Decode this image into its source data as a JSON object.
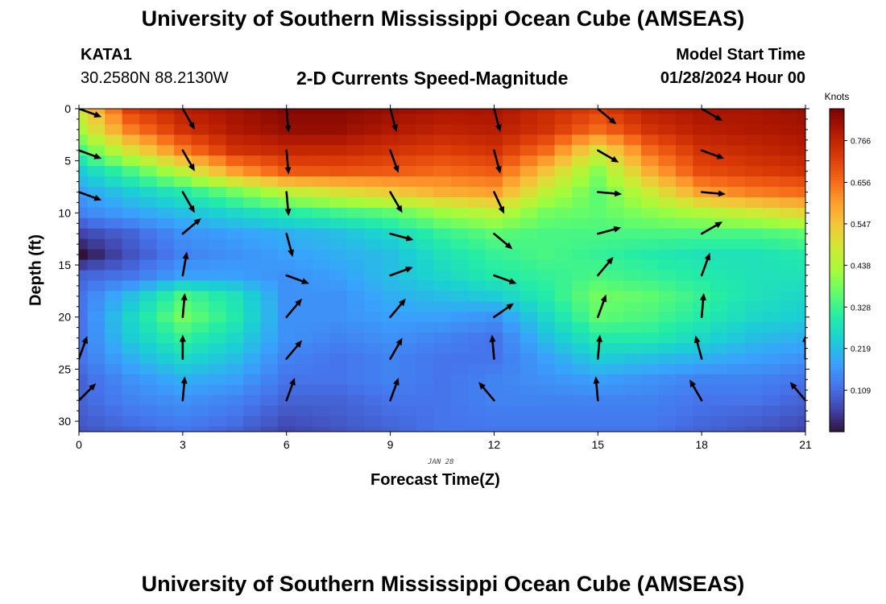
{
  "title": "University of Southern Mississippi Ocean Cube (AMSEAS)",
  "footer_title": "University of Southern Mississippi Ocean Cube (AMSEAS)",
  "station": {
    "id": "KATA1",
    "coords": "30.2580N  88.2130W"
  },
  "subtitle": "2-D Currents Speed-Magnitude",
  "model_start": {
    "label": "Model Start Time",
    "value": "01/28/2024 Hour 00"
  },
  "chart_data": {
    "type": "heatmap",
    "xlabel": "Forecast Time(Z)",
    "ylabel": "Depth (ft)",
    "date_label": "JAN 28",
    "x_ticks": [
      0,
      3,
      6,
      9,
      12,
      15,
      18,
      21
    ],
    "y_ticks": [
      0,
      5,
      10,
      15,
      20,
      25,
      30
    ],
    "xlim": [
      0,
      21
    ],
    "ylim": [
      0,
      31
    ],
    "y_inverted": true,
    "colorbar": {
      "title": "Knots",
      "ticks": [
        0.109,
        0.219,
        0.328,
        0.438,
        0.547,
        0.656,
        0.766
      ],
      "range": [
        0.0,
        0.85
      ],
      "colormap": [
        "#30123b",
        "#4145ab",
        "#4675ed",
        "#39a2fc",
        "#1bcfd4",
        "#24eca6",
        "#61fc6c",
        "#a4fc3b",
        "#d1e834",
        "#f3c63a",
        "#fe9b2d",
        "#f36315",
        "#d93806",
        "#b11901",
        "#7a0402"
      ]
    },
    "times": [
      0,
      0.5,
      1,
      1.5,
      2,
      2.5,
      3,
      3.5,
      4,
      4.5,
      5,
      5.5,
      6,
      6.5,
      7,
      7.5,
      8,
      8.5,
      9,
      9.5,
      10,
      10.5,
      11,
      11.5,
      12,
      12.5,
      13,
      13.5,
      14,
      14.5,
      15,
      15.5,
      16,
      16.5,
      17,
      17.5,
      18,
      18.5,
      19,
      19.5,
      20,
      20.5,
      21
    ],
    "depths": [
      0,
      1,
      2,
      3,
      4,
      5,
      6,
      7,
      8,
      9,
      10,
      11,
      12,
      13,
      14,
      15,
      16,
      17,
      18,
      19,
      20,
      21,
      22,
      23,
      24,
      25,
      26,
      27,
      28,
      29,
      30,
      31
    ],
    "knots": {
      "depths": [
        0,
        2,
        4,
        6,
        8,
        10,
        12,
        14,
        16,
        18,
        20,
        22,
        24,
        26,
        28,
        31
      ],
      "times": [
        0,
        1.5,
        3,
        4.5,
        6,
        7.5,
        9,
        10.5,
        12,
        13.5,
        15,
        16.5,
        18,
        19.5,
        21
      ],
      "speed": [
        [
          0.5,
          0.72,
          0.78,
          0.81,
          0.84,
          0.84,
          0.82,
          0.8,
          0.8,
          0.76,
          0.72,
          0.78,
          0.8,
          0.8,
          0.82
        ],
        [
          0.44,
          0.64,
          0.74,
          0.79,
          0.82,
          0.82,
          0.79,
          0.77,
          0.78,
          0.74,
          0.66,
          0.74,
          0.78,
          0.79,
          0.8
        ],
        [
          0.34,
          0.5,
          0.64,
          0.74,
          0.76,
          0.76,
          0.74,
          0.72,
          0.74,
          0.66,
          0.5,
          0.66,
          0.74,
          0.76,
          0.78
        ],
        [
          0.24,
          0.34,
          0.46,
          0.6,
          0.68,
          0.69,
          0.68,
          0.66,
          0.68,
          0.55,
          0.4,
          0.58,
          0.7,
          0.72,
          0.74
        ],
        [
          0.18,
          0.24,
          0.3,
          0.38,
          0.46,
          0.5,
          0.54,
          0.58,
          0.6,
          0.46,
          0.36,
          0.48,
          0.6,
          0.64,
          0.66
        ],
        [
          0.14,
          0.18,
          0.22,
          0.26,
          0.3,
          0.33,
          0.36,
          0.42,
          0.46,
          0.38,
          0.36,
          0.4,
          0.44,
          0.48,
          0.52
        ],
        [
          0.06,
          0.1,
          0.16,
          0.18,
          0.2,
          0.22,
          0.26,
          0.32,
          0.36,
          0.34,
          0.34,
          0.34,
          0.34,
          0.34,
          0.36
        ],
        [
          0.0,
          0.08,
          0.14,
          0.16,
          0.18,
          0.2,
          0.22,
          0.28,
          0.32,
          0.34,
          0.32,
          0.3,
          0.28,
          0.28,
          0.3
        ],
        [
          0.1,
          0.12,
          0.18,
          0.18,
          0.16,
          0.18,
          0.22,
          0.26,
          0.3,
          0.32,
          0.34,
          0.32,
          0.3,
          0.28,
          0.28
        ],
        [
          0.12,
          0.22,
          0.34,
          0.28,
          0.16,
          0.16,
          0.2,
          0.22,
          0.24,
          0.3,
          0.38,
          0.36,
          0.32,
          0.28,
          0.26
        ],
        [
          0.12,
          0.26,
          0.38,
          0.3,
          0.16,
          0.16,
          0.18,
          0.18,
          0.16,
          0.26,
          0.36,
          0.34,
          0.3,
          0.26,
          0.24
        ],
        [
          0.12,
          0.24,
          0.32,
          0.26,
          0.16,
          0.14,
          0.16,
          0.14,
          0.12,
          0.22,
          0.3,
          0.3,
          0.26,
          0.22,
          0.2
        ],
        [
          0.12,
          0.2,
          0.26,
          0.22,
          0.14,
          0.12,
          0.14,
          0.12,
          0.12,
          0.18,
          0.24,
          0.22,
          0.2,
          0.18,
          0.16
        ],
        [
          0.1,
          0.16,
          0.2,
          0.18,
          0.12,
          0.12,
          0.14,
          0.12,
          0.14,
          0.16,
          0.18,
          0.16,
          0.14,
          0.14,
          0.12
        ],
        [
          0.1,
          0.14,
          0.16,
          0.14,
          0.1,
          0.1,
          0.12,
          0.12,
          0.14,
          0.14,
          0.14,
          0.14,
          0.12,
          0.12,
          0.1
        ],
        [
          0.08,
          0.1,
          0.12,
          0.1,
          0.06,
          0.08,
          0.1,
          0.12,
          0.12,
          0.12,
          0.12,
          0.12,
          0.1,
          0.08,
          0.06
        ]
      ]
    },
    "vectors": [
      {
        "t": 0,
        "d": 0,
        "dir": 110
      },
      {
        "t": 0,
        "d": 4,
        "dir": 110
      },
      {
        "t": 0,
        "d": 8,
        "dir": 110
      },
      {
        "t": 0,
        "d": 24,
        "dir": 20
      },
      {
        "t": 0,
        "d": 28,
        "dir": 45
      },
      {
        "t": 3,
        "d": 0,
        "dir": 150
      },
      {
        "t": 3,
        "d": 4,
        "dir": 150
      },
      {
        "t": 3,
        "d": 8,
        "dir": 150
      },
      {
        "t": 3,
        "d": 12,
        "dir": 50
      },
      {
        "t": 3,
        "d": 16,
        "dir": 10
      },
      {
        "t": 3,
        "d": 20,
        "dir": 5
      },
      {
        "t": 3,
        "d": 24,
        "dir": 0
      },
      {
        "t": 3,
        "d": 28,
        "dir": 5
      },
      {
        "t": 6,
        "d": 0,
        "dir": 175
      },
      {
        "t": 6,
        "d": 4,
        "dir": 175
      },
      {
        "t": 6,
        "d": 8,
        "dir": 175
      },
      {
        "t": 6,
        "d": 12,
        "dir": 165
      },
      {
        "t": 6,
        "d": 16,
        "dir": 110
      },
      {
        "t": 6,
        "d": 20,
        "dir": 40
      },
      {
        "t": 6,
        "d": 24,
        "dir": 40
      },
      {
        "t": 6,
        "d": 28,
        "dir": 20
      },
      {
        "t": 9,
        "d": 0,
        "dir": 165
      },
      {
        "t": 9,
        "d": 4,
        "dir": 160
      },
      {
        "t": 9,
        "d": 8,
        "dir": 150
      },
      {
        "t": 9,
        "d": 12,
        "dir": 105
      },
      {
        "t": 9,
        "d": 16,
        "dir": 70
      },
      {
        "t": 9,
        "d": 20,
        "dir": 40
      },
      {
        "t": 9,
        "d": 24,
        "dir": 30
      },
      {
        "t": 9,
        "d": 28,
        "dir": 20
      },
      {
        "t": 12,
        "d": 0,
        "dir": 165
      },
      {
        "t": 12,
        "d": 4,
        "dir": 165
      },
      {
        "t": 12,
        "d": 8,
        "dir": 155
      },
      {
        "t": 12,
        "d": 12,
        "dir": 130
      },
      {
        "t": 12,
        "d": 16,
        "dir": 110
      },
      {
        "t": 12,
        "d": 20,
        "dir": 55
      },
      {
        "t": 12,
        "d": 24,
        "dir": 355
      },
      {
        "t": 12,
        "d": 28,
        "dir": 320
      },
      {
        "t": 15,
        "d": 0,
        "dir": 130
      },
      {
        "t": 15,
        "d": 4,
        "dir": 120
      },
      {
        "t": 15,
        "d": 8,
        "dir": 95
      },
      {
        "t": 15,
        "d": 12,
        "dir": 75
      },
      {
        "t": 15,
        "d": 16,
        "dir": 40
      },
      {
        "t": 15,
        "d": 20,
        "dir": 20
      },
      {
        "t": 15,
        "d": 24,
        "dir": 5
      },
      {
        "t": 15,
        "d": 28,
        "dir": 355
      },
      {
        "t": 18,
        "d": 0,
        "dir": 120
      },
      {
        "t": 18,
        "d": 4,
        "dir": 110
      },
      {
        "t": 18,
        "d": 8,
        "dir": 95
      },
      {
        "t": 18,
        "d": 12,
        "dir": 60
      },
      {
        "t": 18,
        "d": 16,
        "dir": 20
      },
      {
        "t": 18,
        "d": 20,
        "dir": 5
      },
      {
        "t": 18,
        "d": 24,
        "dir": 345
      },
      {
        "t": 18,
        "d": 28,
        "dir": 330
      },
      {
        "t": 21,
        "d": 24,
        "dir": 0
      },
      {
        "t": 21,
        "d": 28,
        "dir": 320
      }
    ]
  }
}
